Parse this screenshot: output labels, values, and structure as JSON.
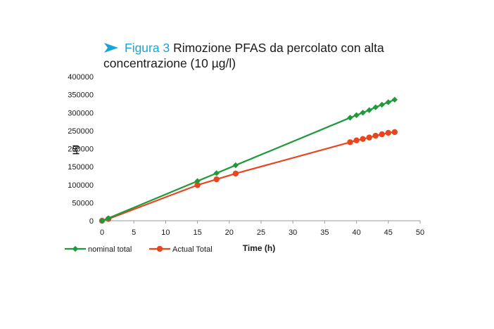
{
  "figure": {
    "label": "Figura 3",
    "title_line1": "Rimozione PFAS da percolato con alta",
    "title_line2": "concentrazione (10 µg/l)",
    "accent_color": "#1aa3d6",
    "arrow_icon": "chevron-arrow-right"
  },
  "chart_data": {
    "type": "line",
    "title": "",
    "xlabel": "Time (h)",
    "ylabel": "µg",
    "xlim": [
      0,
      50
    ],
    "ylim": [
      0,
      400000
    ],
    "x_ticks": [
      "0",
      "5",
      "10",
      "15",
      "20",
      "25",
      "30",
      "35",
      "40",
      "45",
      "50"
    ],
    "y_ticks": [
      "0",
      "50000",
      "100000",
      "150000",
      "200000",
      "250000",
      "300000",
      "350000",
      "400000"
    ],
    "grid": false,
    "legend_position": "bottom-left",
    "series": [
      {
        "name": "nominal total",
        "color": "#1e9a3a",
        "marker": "diamond",
        "x": [
          0,
          1,
          15,
          18,
          21,
          39,
          40,
          41,
          42,
          43,
          44,
          45,
          46
        ],
        "y": [
          0,
          7000,
          110000,
          132000,
          154000,
          286000,
          293000,
          300000,
          307000,
          315000,
          322000,
          329000,
          336000
        ]
      },
      {
        "name": "Actual Total",
        "color": "#e8461f",
        "marker": "circle",
        "x": [
          0,
          1,
          15,
          18,
          21,
          39,
          40,
          41,
          42,
          43,
          44,
          45,
          46
        ],
        "y": [
          0,
          5000,
          99000,
          115000,
          131000,
          218000,
          223000,
          227000,
          231000,
          236000,
          240000,
          244000,
          246000
        ]
      }
    ]
  }
}
